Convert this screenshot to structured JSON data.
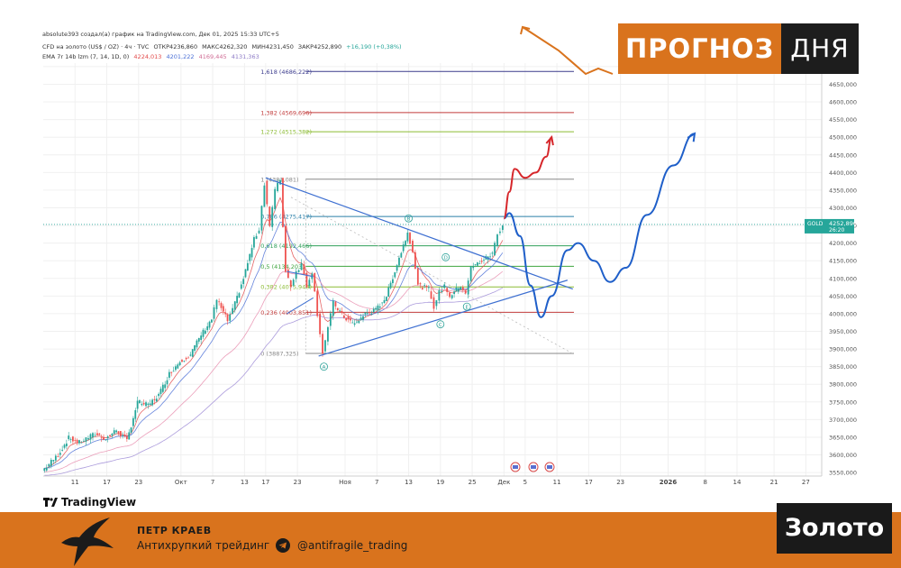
{
  "header": {
    "line1": "absolute393 создал(а) график на TradingView.com, Дек 01, 2025 15:33 UTC+5",
    "line2": {
      "symbol": "CFD на золото (US$ / OZ) · 4ч · TVC",
      "open": "ОТКР4236,860",
      "high": "МАКС4262,320",
      "low": "МИН4231,450",
      "close": "ЗАКР4252,890",
      "change": "+16,190 (+0,38%)"
    },
    "line3": {
      "label": "EMA 7r 14b lzm (7, 14, 1D, 0)",
      "v1": "4224,013",
      "v2": "4201,222",
      "v3": "4169,445",
      "v4": "4131,363"
    }
  },
  "banner": {
    "left": "ПРОГНОЗ",
    "right": "ДНЯ"
  },
  "price_tag": {
    "symbol": "GOLD",
    "price": "4252,890",
    "timer": "26:20"
  },
  "brand": {
    "tradingview": "TradingView"
  },
  "footer": {
    "author": "ПЕТР КРАЕВ",
    "subtitle": "Антихрупкий трейдинг",
    "handle": "@antifragile_trading",
    "asset": "Золото"
  },
  "colors": {
    "accent": "#d9731d",
    "forecast_blue": "#1f5fc9",
    "forecast_red": "#d6262a",
    "trendline": "#3d6fd1",
    "candle_up": "#26a69a",
    "candle_down": "#ef5350",
    "ema_red": "#e24a4a",
    "ema_blue": "#4a6fd6",
    "ema_pink": "#e78dae",
    "ema_purple": "#9d8bd6"
  },
  "chart_data": {
    "type": "candlestick",
    "y_unit": "USD/oz",
    "ylim": [
      3540,
      4710
    ],
    "y_ticks": [
      3550,
      3600,
      3650,
      3700,
      3750,
      3800,
      3850,
      3900,
      3950,
      4000,
      4050,
      4100,
      4150,
      4200,
      4250,
      4300,
      4350,
      4400,
      4450,
      4500,
      4550,
      4600,
      4650,
      4700
    ],
    "y_tick_labels": [
      "3550,000",
      "3600,000",
      "3650,000",
      "3700,000",
      "3750,000",
      "3800,000",
      "3850,000",
      "3900,000",
      "3950,000",
      "4000,000",
      "4050,000",
      "4100,000",
      "4150,000",
      "4200,000",
      "4250,000",
      "4300,000",
      "4350,000",
      "4400,000",
      "4450,000",
      "4500,000",
      "4550,000",
      "4600,000",
      "4650,000",
      "4700,000"
    ],
    "x_ticks": [
      {
        "date": "2025-09-11",
        "label": "11"
      },
      {
        "date": "2025-09-17",
        "label": "17"
      },
      {
        "date": "2025-09-23",
        "label": "23"
      },
      {
        "date": "2025-10-01",
        "label": "Окт"
      },
      {
        "date": "2025-10-07",
        "label": "7"
      },
      {
        "date": "2025-10-13",
        "label": "13"
      },
      {
        "date": "2025-10-17",
        "label": "17"
      },
      {
        "date": "2025-10-23",
        "label": "23"
      },
      {
        "date": "2025-11-01",
        "label": "Ноя"
      },
      {
        "date": "2025-11-07",
        "label": "7"
      },
      {
        "date": "2025-11-13",
        "label": "13"
      },
      {
        "date": "2025-11-19",
        "label": "19"
      },
      {
        "date": "2025-11-25",
        "label": "25"
      },
      {
        "date": "2025-12-01",
        "label": "Дек"
      },
      {
        "date": "2025-12-05",
        "label": "5"
      },
      {
        "date": "2025-12-11",
        "label": "11"
      },
      {
        "date": "2025-12-17",
        "label": "17"
      },
      {
        "date": "2025-12-23",
        "label": "23"
      },
      {
        "date": "2026-01-01",
        "label": "2026"
      },
      {
        "date": "2026-01-08",
        "label": "8"
      },
      {
        "date": "2026-01-14",
        "label": "14"
      },
      {
        "date": "2026-01-21",
        "label": "21"
      },
      {
        "date": "2026-01-27",
        "label": "27"
      }
    ],
    "current_price": 4252.89,
    "price_path": [
      [
        "2025-09-05",
        3555
      ],
      [
        "2025-09-08",
        3600
      ],
      [
        "2025-09-10",
        3648
      ],
      [
        "2025-09-12",
        3635
      ],
      [
        "2025-09-15",
        3660
      ],
      [
        "2025-09-17",
        3645
      ],
      [
        "2025-09-19",
        3670
      ],
      [
        "2025-09-21",
        3640
      ],
      [
        "2025-09-23",
        3750
      ],
      [
        "2025-09-25",
        3740
      ],
      [
        "2025-09-27",
        3770
      ],
      [
        "2025-09-29",
        3830
      ],
      [
        "2025-10-01",
        3865
      ],
      [
        "2025-10-03",
        3885
      ],
      [
        "2025-10-05",
        3940
      ],
      [
        "2025-10-07",
        3985
      ],
      [
        "2025-10-08",
        4040
      ],
      [
        "2025-10-10",
        3980
      ],
      [
        "2025-10-11",
        4010
      ],
      [
        "2025-10-13",
        4100
      ],
      [
        "2025-10-15",
        4210
      ],
      [
        "2025-10-16",
        4240
      ],
      [
        "2025-10-17",
        4370
      ],
      [
        "2025-10-18",
        4250
      ],
      [
        "2025-10-19",
        4350
      ],
      [
        "2025-10-20",
        4380
      ],
      [
        "2025-10-21",
        4120
      ],
      [
        "2025-10-22",
        4080
      ],
      [
        "2025-10-23",
        4120
      ],
      [
        "2025-10-24",
        4140
      ],
      [
        "2025-10-25",
        4080
      ],
      [
        "2025-10-26",
        4120
      ],
      [
        "2025-10-27",
        4000
      ],
      [
        "2025-10-28",
        3890
      ],
      [
        "2025-10-29",
        3960
      ],
      [
        "2025-10-30",
        4030
      ],
      [
        "2025-11-01",
        3990
      ],
      [
        "2025-11-03",
        3970
      ],
      [
        "2025-11-05",
        4000
      ],
      [
        "2025-11-07",
        4010
      ],
      [
        "2025-11-09",
        4050
      ],
      [
        "2025-11-11",
        4140
      ],
      [
        "2025-11-13",
        4230
      ],
      [
        "2025-11-14",
        4180
      ],
      [
        "2025-11-15",
        4080
      ],
      [
        "2025-11-17",
        4070
      ],
      [
        "2025-11-18",
        4020
      ],
      [
        "2025-11-19",
        4060
      ],
      [
        "2025-11-20",
        4080
      ],
      [
        "2025-11-21",
        4050
      ],
      [
        "2025-11-23",
        4080
      ],
      [
        "2025-11-24",
        4060
      ],
      [
        "2025-11-25",
        4130
      ],
      [
        "2025-11-27",
        4150
      ],
      [
        "2025-11-29",
        4170
      ],
      [
        "2025-11-30",
        4225
      ],
      [
        "2025-12-01",
        4252.89
      ]
    ],
    "fibonacci": [
      {
        "level": "1,618",
        "price": 4686.222,
        "label": "1,618 (4686,222)",
        "color": "#3a3a8c"
      },
      {
        "level": "1,382",
        "price": 4569.696,
        "label": "1,382 (4569,696)",
        "color": "#c23b3b"
      },
      {
        "level": "1,272",
        "price": 4515.382,
        "label": "1,272 (4515,382)",
        "color": "#8bbb33"
      },
      {
        "level": "1",
        "price": 4381.081,
        "label": "1 (4381,081)",
        "color": "#888888"
      },
      {
        "level": "0,786",
        "price": 4275.417,
        "label": "0,786 (4275,417)",
        "color": "#2a7fa8"
      },
      {
        "level": "0,618",
        "price": 4192.466,
        "label": "0,618 (4192,466)",
        "color": "#30a05a"
      },
      {
        "level": "0,5",
        "price": 4134.203,
        "label": "0,5 (4134,203)",
        "color": "#3fa53f"
      },
      {
        "level": "0,382",
        "price": 4075.94,
        "label": "0,382 (4075,940)",
        "color": "#8bbb33"
      },
      {
        "level": "0,236",
        "price": 4003.851,
        "label": "0,236 (4003,851)",
        "color": "#c23b3b"
      },
      {
        "level": "0",
        "price": 3887.325,
        "label": "0 (3887,325)",
        "color": "#888888"
      }
    ],
    "fib_label_dates": {
      "start": "2025-10-14",
      "end": "2026-01-07"
    },
    "triangle_lines": [
      {
        "from": [
          "2025-10-17",
          4385
        ],
        "to": [
          "2025-12-14",
          4070
        ]
      },
      {
        "from": [
          "2025-10-27",
          3880
        ],
        "to": [
          "2025-12-13",
          4095
        ]
      }
    ],
    "wave_labels": [
      {
        "text": "A",
        "date": "2025-10-28",
        "price": 3850
      },
      {
        "text": "B",
        "date": "2025-11-13",
        "price": 4270
      },
      {
        "text": "C",
        "date": "2025-11-19",
        "price": 3970
      },
      {
        "text": "D",
        "date": "2025-11-20",
        "price": 4160
      },
      {
        "text": "E",
        "date": "2025-11-24",
        "price": 4020
      }
    ],
    "forecast_blue": [
      [
        "2025-12-01",
        4270
      ],
      [
        "2025-12-02",
        4285
      ],
      [
        "2025-12-04",
        4220
      ],
      [
        "2025-12-06",
        4080
      ],
      [
        "2025-12-08",
        3990
      ],
      [
        "2025-12-10",
        4050
      ],
      [
        "2025-12-13",
        4180
      ],
      [
        "2025-12-15",
        4200
      ],
      [
        "2025-12-18",
        4150
      ],
      [
        "2025-12-21",
        4090
      ],
      [
        "2025-12-24",
        4130
      ],
      [
        "2025-12-28",
        4280
      ],
      [
        "2026-01-02",
        4420
      ],
      [
        "2026-01-06",
        4510
      ]
    ],
    "forecast_red": [
      [
        "2025-12-01",
        4270
      ],
      [
        "2025-12-02",
        4345
      ],
      [
        "2025-12-03",
        4410
      ],
      [
        "2025-12-05",
        4385
      ],
      [
        "2025-12-07",
        4400
      ],
      [
        "2025-12-09",
        4445
      ],
      [
        "2025-12-10",
        4500
      ]
    ],
    "forecast_orange": [
      [
        "2025-12-01",
        4745
      ],
      [
        "2025-12-08",
        4710
      ],
      [
        "2025-12-12",
        4700
      ],
      [
        "2025-12-16",
        4720
      ],
      [
        "2025-12-20",
        4700
      ]
    ]
  }
}
